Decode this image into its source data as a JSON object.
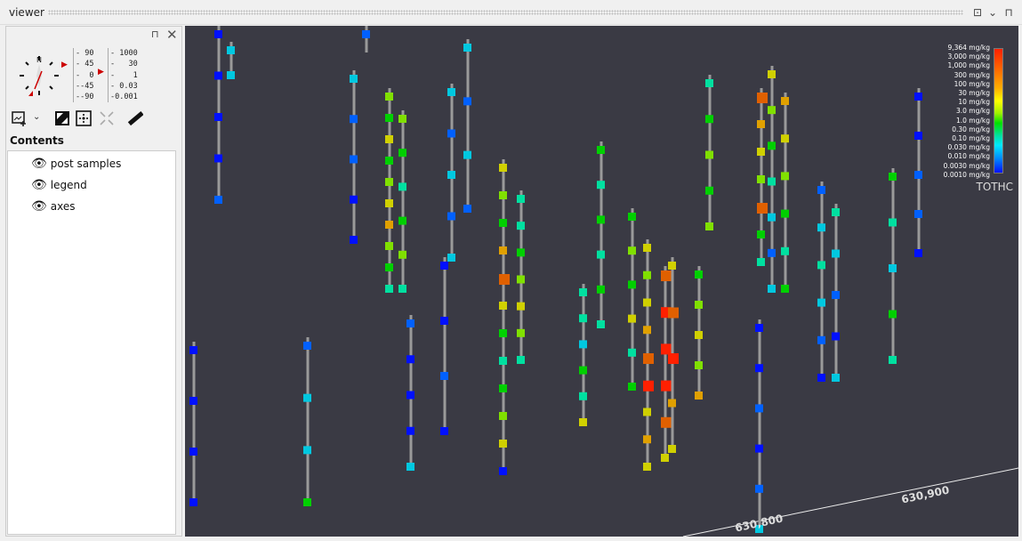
{
  "window": {
    "title": "viewer"
  },
  "scales": {
    "dip": [
      "90",
      "45",
      "0",
      "-45",
      "-90"
    ],
    "exag": [
      "1000",
      "30",
      "1",
      "0.03",
      "0.001"
    ]
  },
  "contents": {
    "label": "Contents",
    "items": [
      {
        "label": "post samples"
      },
      {
        "label": "legend"
      },
      {
        "label": "axes"
      }
    ]
  },
  "legend": {
    "title": "TOTHC",
    "labels": [
      "9,364 mg/kg",
      "3,000 mg/kg",
      "1,000 mg/kg",
      "300 mg/kg",
      "100 mg/kg",
      "30 mg/kg",
      "10 mg/kg",
      "3.0 mg/kg",
      "1.0 mg/kg",
      "0.30 mg/kg",
      "0.10 mg/kg",
      "0.030 mg/kg",
      "0.010 mg/kg",
      "0.0030 mg/kg",
      "0.0010 mg/kg"
    ]
  },
  "axes": {
    "labels": [
      "630,800",
      "630,900"
    ]
  },
  "colors": {
    "background": "#3a3a44",
    "low": "#0010ff",
    "high": "#ff2000"
  }
}
